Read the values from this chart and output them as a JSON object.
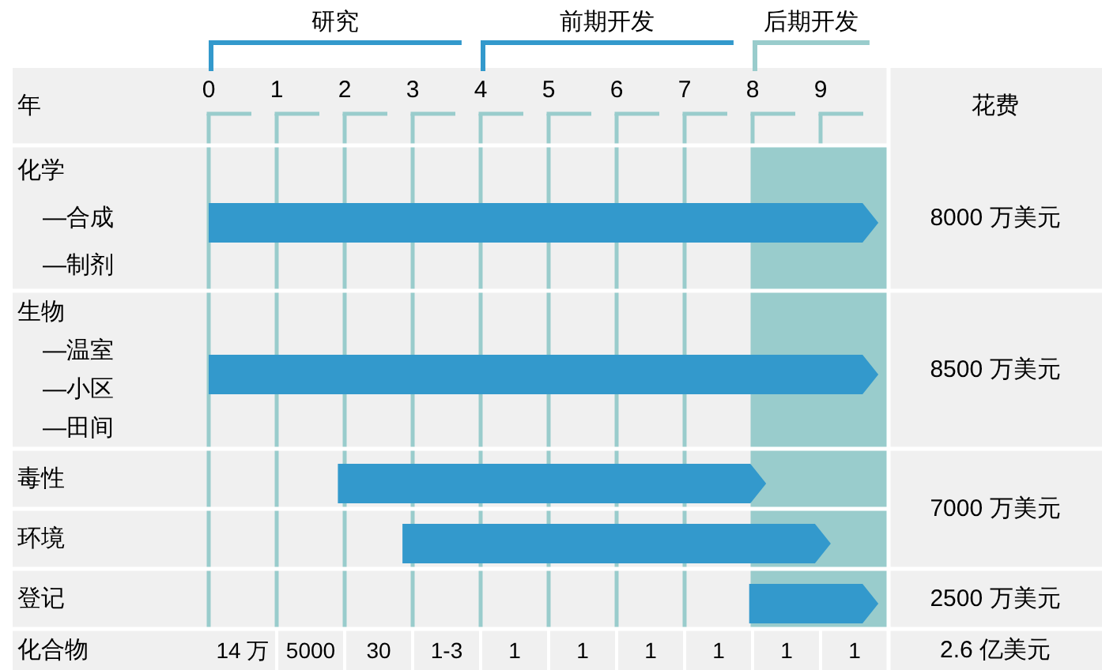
{
  "chart_data": {
    "type": "bar",
    "orientation": "horizontal",
    "xlabel": "年",
    "categories": [
      "化学\n—合成\n—制剂",
      "生物\n—温室\n—小区\n—田间",
      "毒性",
      "环境",
      "登记"
    ],
    "base": [
      0,
      0,
      1.9,
      2.85,
      7.95
    ],
    "values": [
      9.85,
      9.85,
      6.3,
      6.3,
      1.9
    ],
    "color": "#3399cc",
    "xlim": [
      0,
      10
    ],
    "xticks": [
      0,
      1,
      2,
      3,
      4,
      5,
      6,
      7,
      8,
      9
    ],
    "grid": "x",
    "bands": [
      {
        "axis": "x",
        "from": 8,
        "to": 10,
        "color": "#99cccc"
      }
    ],
    "annotations": [
      "研究",
      "前期开发",
      "后期开发",
      "花费",
      "8000 万美元",
      "8500 万美元",
      "7000 万美元",
      "2500 万美元",
      "化合物",
      "14 万",
      "5000",
      "30",
      "1-3",
      "1",
      "1",
      "1",
      "1",
      "1",
      "1",
      "2.6 亿美元"
    ]
  }
}
